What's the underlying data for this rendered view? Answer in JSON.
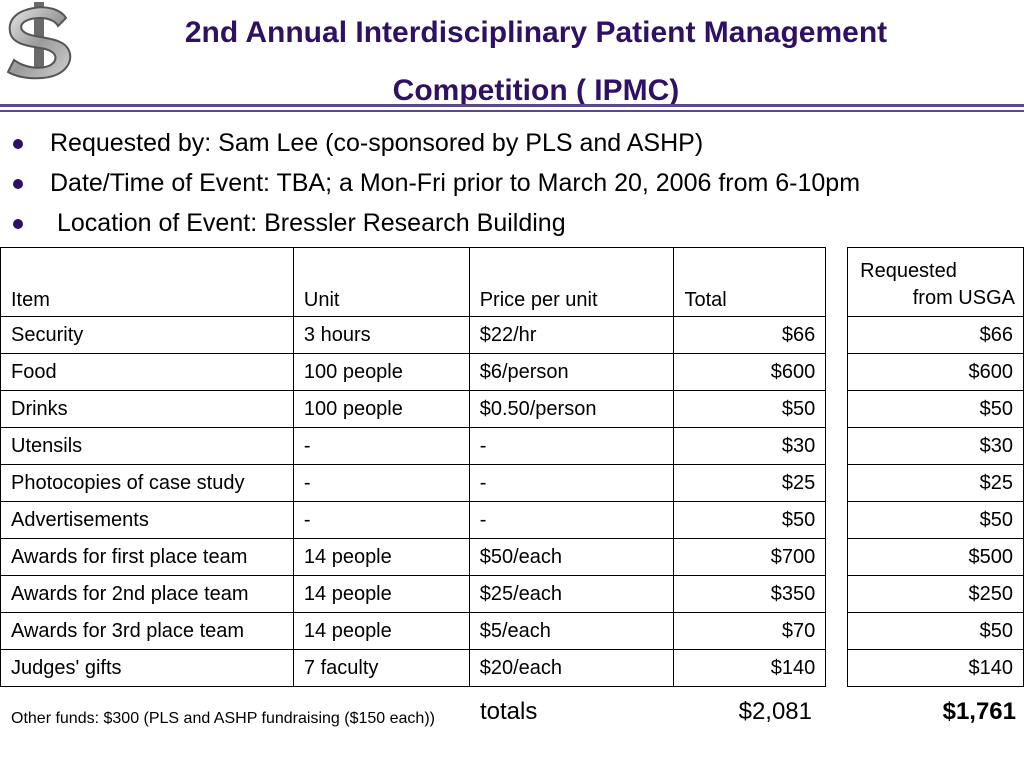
{
  "header": {
    "logo_icon": "dollar-sign-icon",
    "title_line1": "2nd Annual Interdisciplinary Patient Management",
    "title_line2": "Competition ( IPMC)"
  },
  "colors": {
    "title": "#2e1065",
    "rule": "#5b4a8a"
  },
  "bullets": [
    "Requested by:  Sam Lee (co-sponsored by PLS and ASHP)",
    "Date/Time of Event:  TBA; a Mon-Fri prior to March 20, 2006 from 6-10pm",
    "Location of Event: Bressler Research Building"
  ],
  "table": {
    "headers": {
      "item": "Item",
      "unit": "Unit",
      "price": "Price per unit",
      "total": "Total",
      "requested_line1": "Requested",
      "requested_line2": "from USGA"
    },
    "rows": [
      {
        "item": "Security",
        "unit": "3 hours",
        "price": "$22/hr",
        "total": "$66",
        "requested": "$66"
      },
      {
        "item": "Food",
        "unit": "100 people",
        "price": "$6/person",
        "total": "$600",
        "requested": "$600"
      },
      {
        "item": "Drinks",
        "unit": "100 people",
        "price": "$0.50/person",
        "total": "$50",
        "requested": "$50"
      },
      {
        "item": "Utensils",
        "unit": "-",
        "price": "-",
        "total": "$30",
        "requested": "$30"
      },
      {
        "item": "Photocopies of case study",
        "unit": "-",
        "price": "-",
        "total": "$25",
        "requested": "$25"
      },
      {
        "item": "Advertisements",
        "unit": "-",
        "price": "-",
        "total": "$50",
        "requested": "$50"
      },
      {
        "item": "Awards for first place team",
        "unit": "14 people",
        "price": "$50/each",
        "total": "$700",
        "requested": "$500"
      },
      {
        "item": "Awards for 2nd place team",
        "unit": "14 people",
        "price": "$25/each",
        "total": "$350",
        "requested": "$250"
      },
      {
        "item": "Awards for 3rd place team",
        "unit": "14 people",
        "price": "$5/each",
        "total": "$70",
        "requested": "$50"
      },
      {
        "item": "Judges' gifts",
        "unit": "7 faculty",
        "price": "$20/each",
        "total": "$140",
        "requested": "$140"
      }
    ]
  },
  "totals": {
    "label": "totals",
    "total": "$2,081",
    "requested": "$1,761"
  },
  "other_funds": "Other funds:  $300 (PLS and ASHP fundraising ($150 each))"
}
